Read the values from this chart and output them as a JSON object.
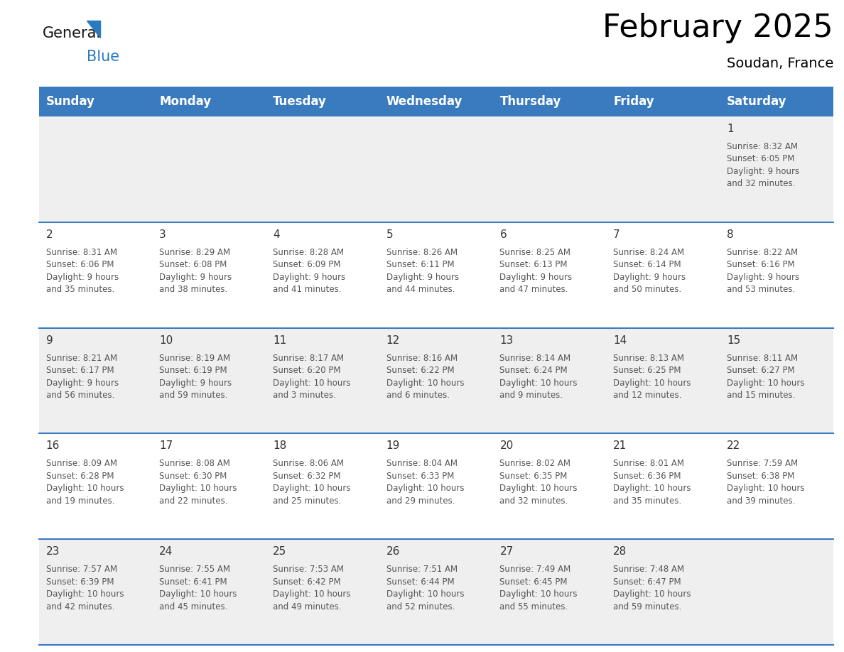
{
  "title": "February 2025",
  "subtitle": "Soudan, France",
  "header_bg_color": "#3a7bbf",
  "header_text_color": "#ffffff",
  "cell_bg_color_odd": "#efefef",
  "cell_bg_color_even": "#ffffff",
  "day_headers": [
    "Sunday",
    "Monday",
    "Tuesday",
    "Wednesday",
    "Thursday",
    "Friday",
    "Saturday"
  ],
  "calendar_data": [
    [
      null,
      null,
      null,
      null,
      null,
      null,
      {
        "day": 1,
        "sunrise": "8:32 AM",
        "sunset": "6:05 PM",
        "daylight": "9 hours",
        "daylight2": "and 32 minutes."
      }
    ],
    [
      {
        "day": 2,
        "sunrise": "8:31 AM",
        "sunset": "6:06 PM",
        "daylight": "9 hours",
        "daylight2": "and 35 minutes."
      },
      {
        "day": 3,
        "sunrise": "8:29 AM",
        "sunset": "6:08 PM",
        "daylight": "9 hours",
        "daylight2": "and 38 minutes."
      },
      {
        "day": 4,
        "sunrise": "8:28 AM",
        "sunset": "6:09 PM",
        "daylight": "9 hours",
        "daylight2": "and 41 minutes."
      },
      {
        "day": 5,
        "sunrise": "8:26 AM",
        "sunset": "6:11 PM",
        "daylight": "9 hours",
        "daylight2": "and 44 minutes."
      },
      {
        "day": 6,
        "sunrise": "8:25 AM",
        "sunset": "6:13 PM",
        "daylight": "9 hours",
        "daylight2": "and 47 minutes."
      },
      {
        "day": 7,
        "sunrise": "8:24 AM",
        "sunset": "6:14 PM",
        "daylight": "9 hours",
        "daylight2": "and 50 minutes."
      },
      {
        "day": 8,
        "sunrise": "8:22 AM",
        "sunset": "6:16 PM",
        "daylight": "9 hours",
        "daylight2": "and 53 minutes."
      }
    ],
    [
      {
        "day": 9,
        "sunrise": "8:21 AM",
        "sunset": "6:17 PM",
        "daylight": "9 hours",
        "daylight2": "and 56 minutes."
      },
      {
        "day": 10,
        "sunrise": "8:19 AM",
        "sunset": "6:19 PM",
        "daylight": "9 hours",
        "daylight2": "and 59 minutes."
      },
      {
        "day": 11,
        "sunrise": "8:17 AM",
        "sunset": "6:20 PM",
        "daylight": "10 hours",
        "daylight2": "and 3 minutes."
      },
      {
        "day": 12,
        "sunrise": "8:16 AM",
        "sunset": "6:22 PM",
        "daylight": "10 hours",
        "daylight2": "and 6 minutes."
      },
      {
        "day": 13,
        "sunrise": "8:14 AM",
        "sunset": "6:24 PM",
        "daylight": "10 hours",
        "daylight2": "and 9 minutes."
      },
      {
        "day": 14,
        "sunrise": "8:13 AM",
        "sunset": "6:25 PM",
        "daylight": "10 hours",
        "daylight2": "and 12 minutes."
      },
      {
        "day": 15,
        "sunrise": "8:11 AM",
        "sunset": "6:27 PM",
        "daylight": "10 hours",
        "daylight2": "and 15 minutes."
      }
    ],
    [
      {
        "day": 16,
        "sunrise": "8:09 AM",
        "sunset": "6:28 PM",
        "daylight": "10 hours",
        "daylight2": "and 19 minutes."
      },
      {
        "day": 17,
        "sunrise": "8:08 AM",
        "sunset": "6:30 PM",
        "daylight": "10 hours",
        "daylight2": "and 22 minutes."
      },
      {
        "day": 18,
        "sunrise": "8:06 AM",
        "sunset": "6:32 PM",
        "daylight": "10 hours",
        "daylight2": "and 25 minutes."
      },
      {
        "day": 19,
        "sunrise": "8:04 AM",
        "sunset": "6:33 PM",
        "daylight": "10 hours",
        "daylight2": "and 29 minutes."
      },
      {
        "day": 20,
        "sunrise": "8:02 AM",
        "sunset": "6:35 PM",
        "daylight": "10 hours",
        "daylight2": "and 32 minutes."
      },
      {
        "day": 21,
        "sunrise": "8:01 AM",
        "sunset": "6:36 PM",
        "daylight": "10 hours",
        "daylight2": "and 35 minutes."
      },
      {
        "day": 22,
        "sunrise": "7:59 AM",
        "sunset": "6:38 PM",
        "daylight": "10 hours",
        "daylight2": "and 39 minutes."
      }
    ],
    [
      {
        "day": 23,
        "sunrise": "7:57 AM",
        "sunset": "6:39 PM",
        "daylight": "10 hours",
        "daylight2": "and 42 minutes."
      },
      {
        "day": 24,
        "sunrise": "7:55 AM",
        "sunset": "6:41 PM",
        "daylight": "10 hours",
        "daylight2": "and 45 minutes."
      },
      {
        "day": 25,
        "sunrise": "7:53 AM",
        "sunset": "6:42 PM",
        "daylight": "10 hours",
        "daylight2": "and 49 minutes."
      },
      {
        "day": 26,
        "sunrise": "7:51 AM",
        "sunset": "6:44 PM",
        "daylight": "10 hours",
        "daylight2": "and 52 minutes."
      },
      {
        "day": 27,
        "sunrise": "7:49 AM",
        "sunset": "6:45 PM",
        "daylight": "10 hours",
        "daylight2": "and 55 minutes."
      },
      {
        "day": 28,
        "sunrise": "7:48 AM",
        "sunset": "6:47 PM",
        "daylight": "10 hours",
        "daylight2": "and 59 minutes."
      },
      null
    ]
  ],
  "divider_color": "#3a7bbf",
  "text_color_day_num": "#333333",
  "text_color_info": "#555555",
  "title_fontsize": 32,
  "subtitle_fontsize": 14,
  "header_fontsize": 12,
  "day_num_fontsize": 11,
  "info_fontsize": 8.5
}
